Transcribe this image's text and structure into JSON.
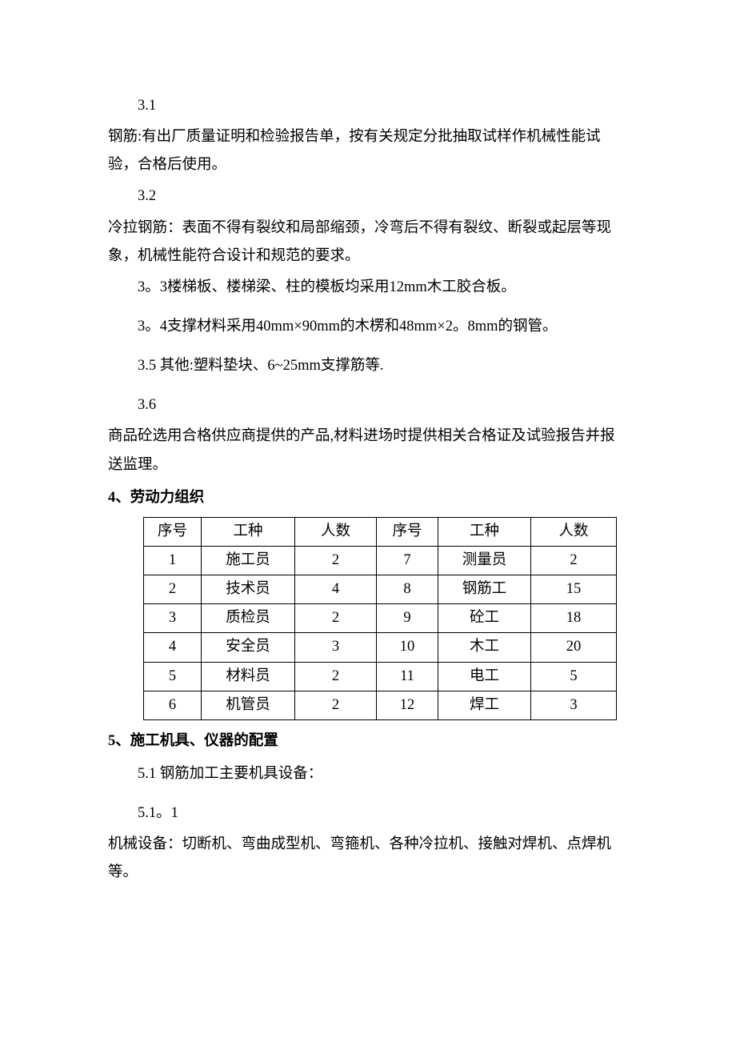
{
  "sections": {
    "s3_1_num": "3.1",
    "s3_1_text": "钢筋:有出厂质量证明和检验报告单，按有关规定分批抽取试样作机械性能试验，合格后使用。",
    "s3_2_num": "3.2",
    "s3_2_text": "冷拉钢筋：表面不得有裂纹和局部缩颈，冷弯后不得有裂纹、断裂或起层等现象，机械性能符合设计和规范的要求。",
    "s3_3": "3。3楼梯板、楼梯梁、柱的模板均采用12mm木工胶合板。",
    "s3_4": "3。4支撑材料采用40mm×90mm的木楞和48mm×2。8mm的钢管。",
    "s3_5": "3.5 其他:塑料垫块、6~25mm支撑筋等.",
    "s3_6_num": "3.6",
    "s3_6_text": "商品砼选用合格供应商提供的产品,材料进场时提供相关合格证及试验报告并报送监理。",
    "h4": "4、劳动力组织",
    "h5": "5、施工机具、仪器的配置",
    "s5_1": "5.1 钢筋加工主要机具设备：",
    "s5_1_1_num": "5.1。1",
    "s5_1_1_text": "机械设备：切断机、弯曲成型机、弯箍机、各种冷拉机、接触对焊机、点焊机等。"
  },
  "table": {
    "headers": [
      "序号",
      "工种",
      "人数",
      "序号",
      "工种",
      "人数"
    ],
    "rows": [
      [
        "1",
        "施工员",
        "2",
        "7",
        "测量员",
        "2"
      ],
      [
        "2",
        "技术员",
        "4",
        "8",
        "钢筋工",
        "15"
      ],
      [
        "3",
        "质检员",
        "2",
        "9",
        "砼工",
        "18"
      ],
      [
        "4",
        "安全员",
        "3",
        "10",
        "木工",
        "20"
      ],
      [
        "5",
        "材料员",
        "2",
        "11",
        "电工",
        "5"
      ],
      [
        "6",
        "机管员",
        "2",
        "12",
        "焊工",
        "3"
      ]
    ]
  }
}
